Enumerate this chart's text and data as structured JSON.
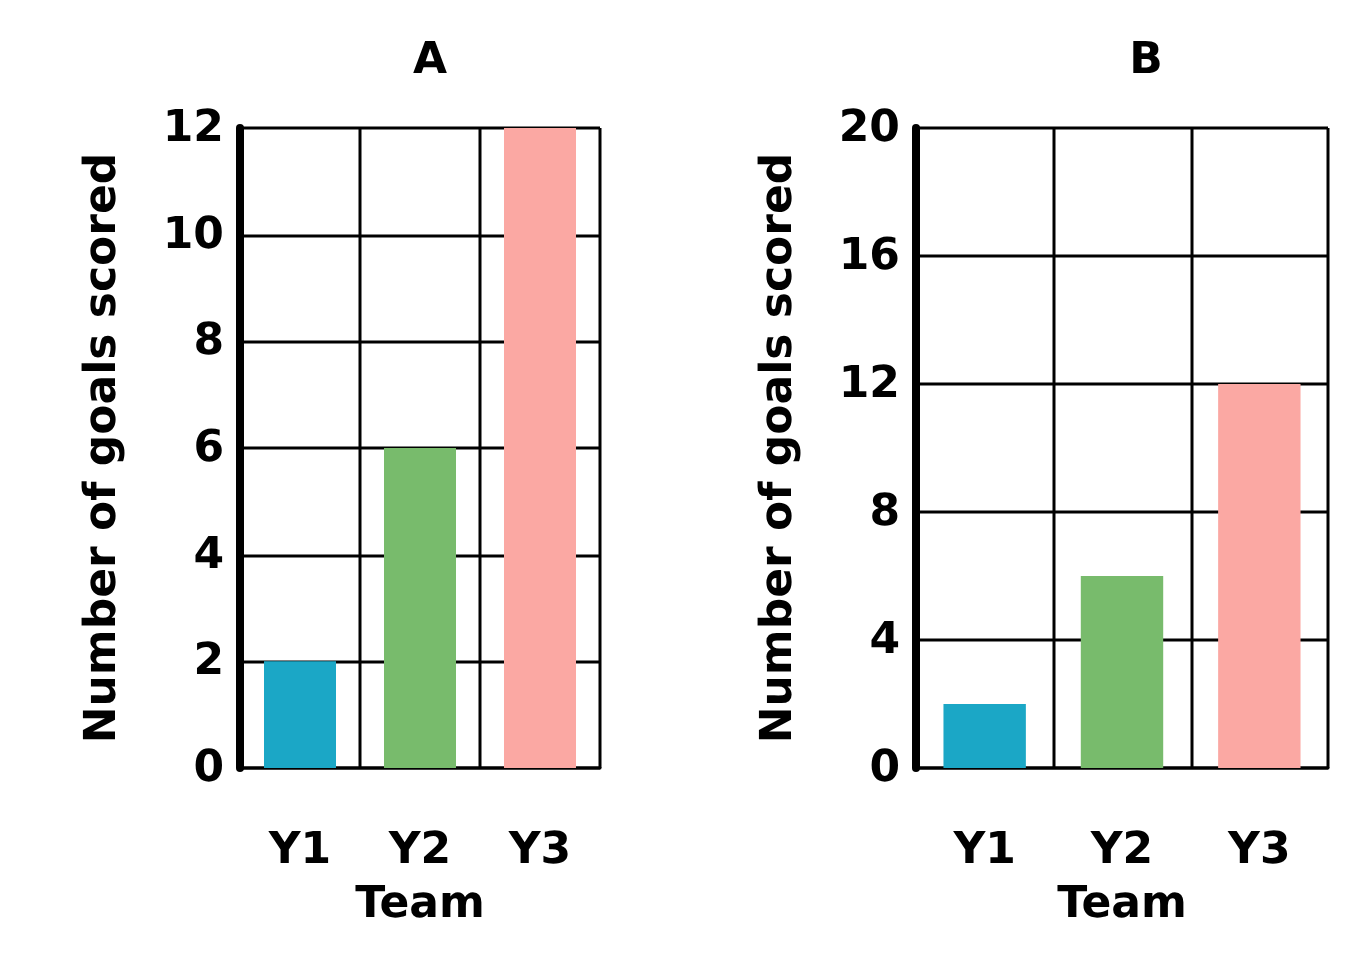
{
  "chart_data": [
    {
      "type": "bar",
      "title": "A",
      "xlabel": "Team",
      "ylabel": "Number of goals scored",
      "categories": [
        "Y1",
        "Y2",
        "Y3"
      ],
      "values": [
        2,
        6,
        12
      ],
      "colors": [
        "#1ba7c6",
        "#78bb6c",
        "#fba8a3"
      ],
      "ylim": [
        0,
        12
      ],
      "yticks": [
        0,
        2,
        4,
        6,
        8,
        10,
        12
      ],
      "grid": true
    },
    {
      "type": "bar",
      "title": "B",
      "xlabel": "Team",
      "ylabel": "Number of goals scored",
      "categories": [
        "Y1",
        "Y2",
        "Y3"
      ],
      "values": [
        2,
        6,
        12
      ],
      "colors": [
        "#1ba7c6",
        "#78bb6c",
        "#fba8a3"
      ],
      "ylim": [
        0,
        20
      ],
      "yticks": [
        0,
        4,
        8,
        12,
        16,
        20
      ],
      "grid": true
    }
  ]
}
